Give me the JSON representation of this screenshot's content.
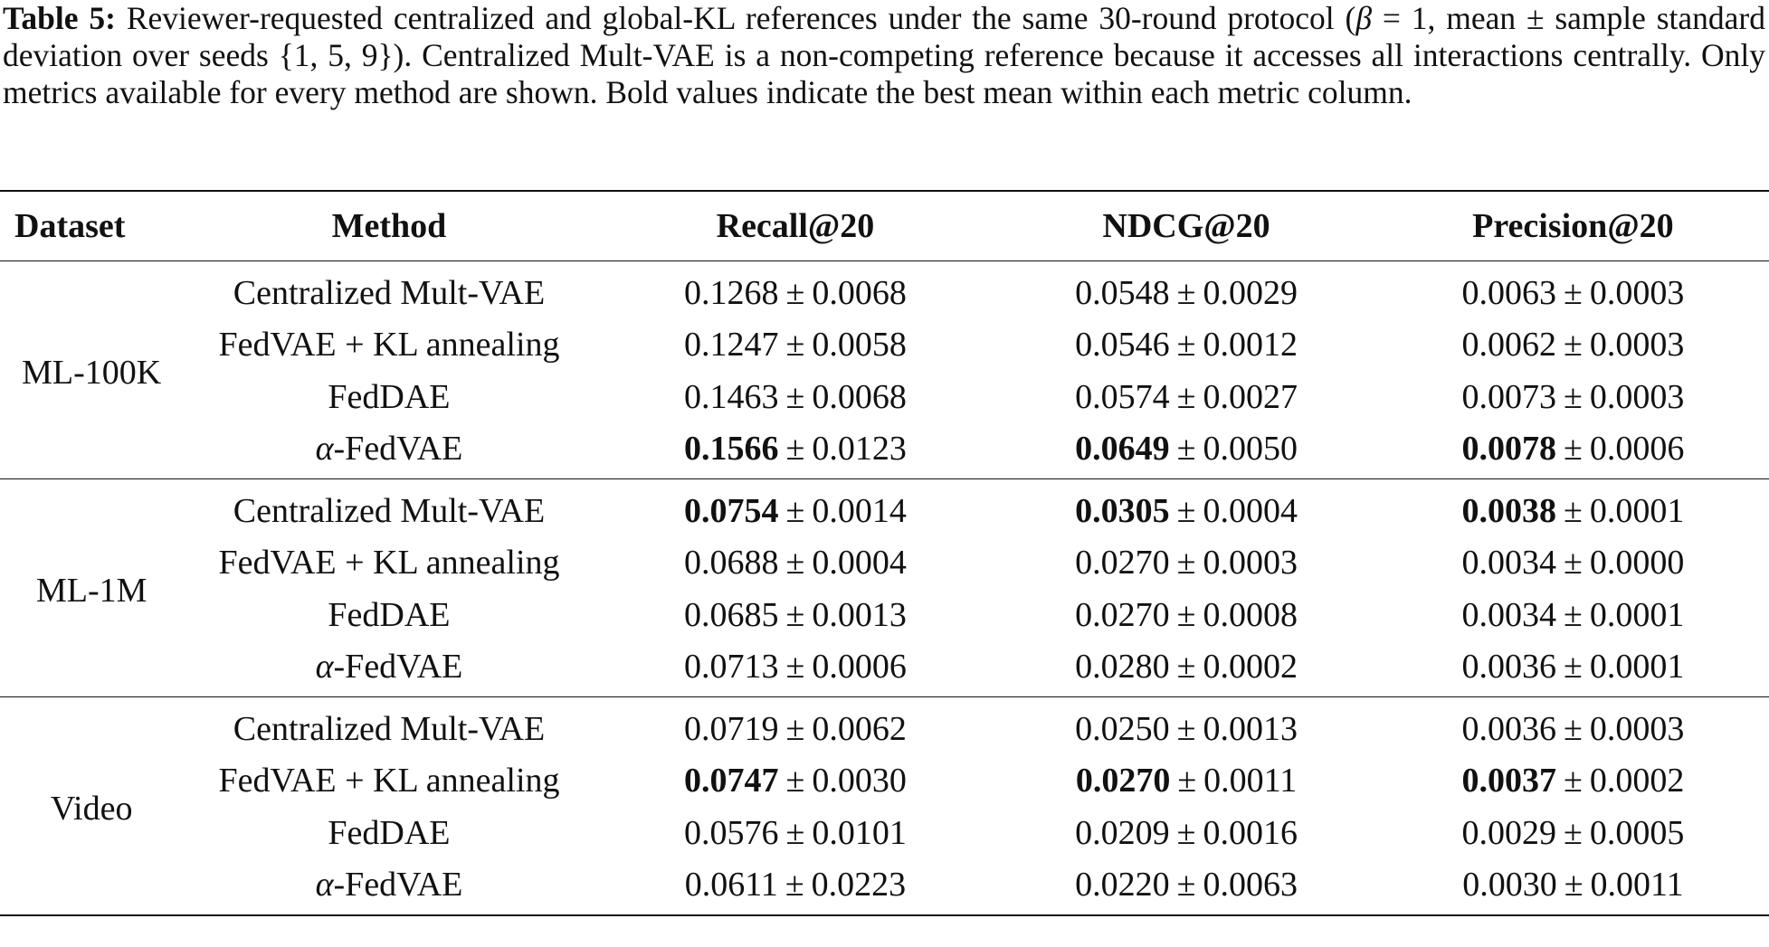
{
  "caption": {
    "label": "Table 5:",
    "text_before_beta": " Reviewer-requested centralized and global-KL references under the same 30-round protocol (",
    "beta_symbol": "β",
    "text_after_beta": " = 1, mean ± sample standard deviation over seeds {1, 5, 9}). Centralized Mult-VAE is a non-competing reference because it accesses all interactions centrally. Only metrics available for every method are shown. Bold values indicate the best mean within each metric column."
  },
  "table": {
    "headers": {
      "dataset": "Dataset",
      "method": "Method",
      "recall": "Recall@20",
      "ndcg": "NDCG@20",
      "precision": "Precision@20"
    },
    "pm_symbol": "±",
    "groups": [
      {
        "dataset": "ML-100K",
        "rows": [
          {
            "method": "Centralized Mult-VAE",
            "recall": {
              "mean": "0.1268",
              "sd": "0.0068",
              "best": false
            },
            "ndcg": {
              "mean": "0.0548",
              "sd": "0.0029",
              "best": false
            },
            "precision": {
              "mean": "0.0063",
              "sd": "0.0003",
              "best": false
            }
          },
          {
            "method": "FedVAE + KL annealing",
            "recall": {
              "mean": "0.1247",
              "sd": "0.0058",
              "best": false
            },
            "ndcg": {
              "mean": "0.0546",
              "sd": "0.0012",
              "best": false
            },
            "precision": {
              "mean": "0.0062",
              "sd": "0.0003",
              "best": false
            }
          },
          {
            "method": "FedDAE",
            "recall": {
              "mean": "0.1463",
              "sd": "0.0068",
              "best": false
            },
            "ndcg": {
              "mean": "0.0574",
              "sd": "0.0027",
              "best": false
            },
            "precision": {
              "mean": "0.0073",
              "sd": "0.0003",
              "best": false
            }
          },
          {
            "method_prefix": "α",
            "method": "-FedVAE",
            "recall": {
              "mean": "0.1566",
              "sd": "0.0123",
              "best": true
            },
            "ndcg": {
              "mean": "0.0649",
              "sd": "0.0050",
              "best": true
            },
            "precision": {
              "mean": "0.0078",
              "sd": "0.0006",
              "best": true
            }
          }
        ]
      },
      {
        "dataset": "ML-1M",
        "rows": [
          {
            "method": "Centralized Mult-VAE",
            "recall": {
              "mean": "0.0754",
              "sd": "0.0014",
              "best": true
            },
            "ndcg": {
              "mean": "0.0305",
              "sd": "0.0004",
              "best": true
            },
            "precision": {
              "mean": "0.0038",
              "sd": "0.0001",
              "best": true
            }
          },
          {
            "method": "FedVAE + KL annealing",
            "recall": {
              "mean": "0.0688",
              "sd": "0.0004",
              "best": false
            },
            "ndcg": {
              "mean": "0.0270",
              "sd": "0.0003",
              "best": false
            },
            "precision": {
              "mean": "0.0034",
              "sd": "0.0000",
              "best": false
            }
          },
          {
            "method": "FedDAE",
            "recall": {
              "mean": "0.0685",
              "sd": "0.0013",
              "best": false
            },
            "ndcg": {
              "mean": "0.0270",
              "sd": "0.0008",
              "best": false
            },
            "precision": {
              "mean": "0.0034",
              "sd": "0.0001",
              "best": false
            }
          },
          {
            "method_prefix": "α",
            "method": "-FedVAE",
            "recall": {
              "mean": "0.0713",
              "sd": "0.0006",
              "best": false
            },
            "ndcg": {
              "mean": "0.0280",
              "sd": "0.0002",
              "best": false
            },
            "precision": {
              "mean": "0.0036",
              "sd": "0.0001",
              "best": false
            }
          }
        ]
      },
      {
        "dataset": "Video",
        "rows": [
          {
            "method": "Centralized Mult-VAE",
            "recall": {
              "mean": "0.0719",
              "sd": "0.0062",
              "best": false
            },
            "ndcg": {
              "mean": "0.0250",
              "sd": "0.0013",
              "best": false
            },
            "precision": {
              "mean": "0.0036",
              "sd": "0.0003",
              "best": false
            }
          },
          {
            "method": "FedVAE + KL annealing",
            "recall": {
              "mean": "0.0747",
              "sd": "0.0030",
              "best": true
            },
            "ndcg": {
              "mean": "0.0270",
              "sd": "0.0011",
              "best": true
            },
            "precision": {
              "mean": "0.0037",
              "sd": "0.0002",
              "best": true
            }
          },
          {
            "method": "FedDAE",
            "recall": {
              "mean": "0.0576",
              "sd": "0.0101",
              "best": false
            },
            "ndcg": {
              "mean": "0.0209",
              "sd": "0.0016",
              "best": false
            },
            "precision": {
              "mean": "0.0029",
              "sd": "0.0005",
              "best": false
            }
          },
          {
            "method_prefix": "α",
            "method": "-FedVAE",
            "recall": {
              "mean": "0.0611",
              "sd": "0.0223",
              "best": false
            },
            "ndcg": {
              "mean": "0.0220",
              "sd": "0.0063",
              "best": false
            },
            "precision": {
              "mean": "0.0030",
              "sd": "0.0011",
              "best": false
            }
          }
        ]
      }
    ]
  }
}
